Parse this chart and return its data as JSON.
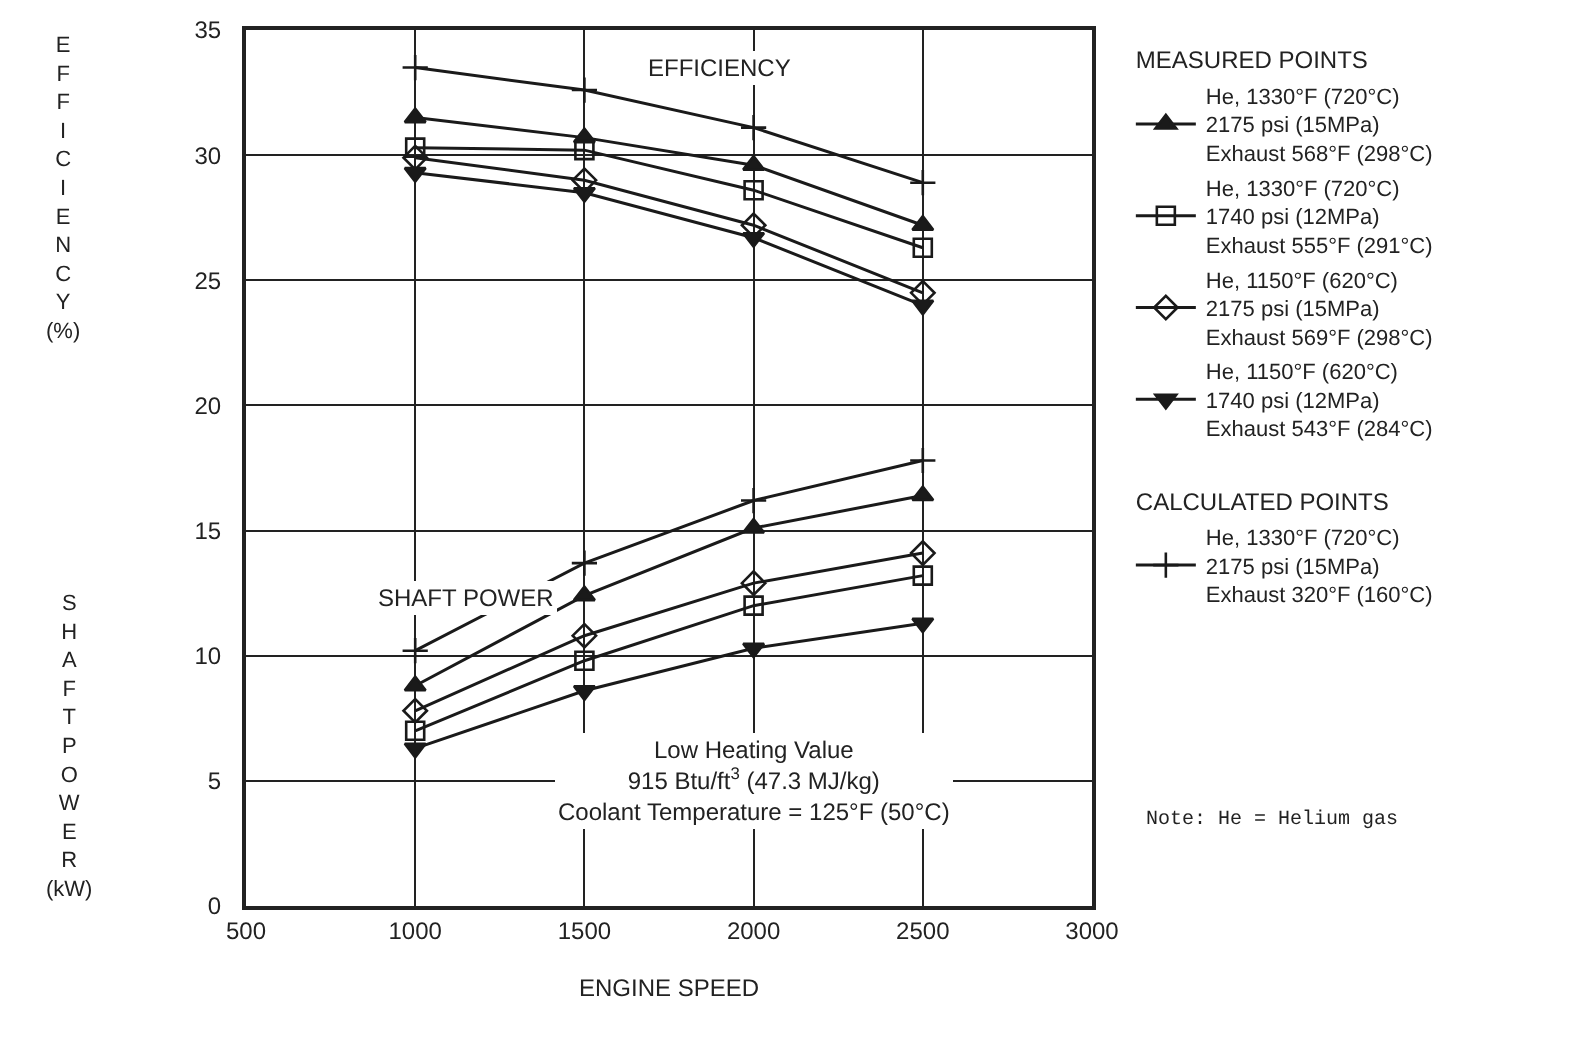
{
  "chart_data": {
    "type": "line",
    "xlabel": "ENGINE SPEED",
    "ylabel": "EFFICIENCY (%)",
    "legend_title": "MEASURED POINTS",
    "x": [
      1000,
      1500,
      2000,
      2500
    ],
    "xlim": [
      500,
      3000
    ],
    "xticks": [
      500,
      1000,
      1500,
      2000,
      2500,
      3000
    ],
    "ylim": [
      0,
      35
    ],
    "yticks": [
      0,
      5,
      10,
      15,
      20,
      25,
      30,
      35
    ],
    "grid": true,
    "legend": "right",
    "line_style": "solid",
    "series": [
      {
        "name": "He, 1330°F (720°C)\n2175 psi (15MPa)\nExhaust 568°F (298°C)",
        "color": "#1a1a1a",
        "marker": "triangle-up",
        "values": [
          31.5,
          30.7,
          29.6,
          27.2
        ]
      },
      {
        "name": "He, 1330°F (720°C)\n1740 psi (12MPa)\nExhaust 555°F (291°C)",
        "color": "#1a1a1a",
        "marker": "square",
        "values": [
          30.3,
          30.2,
          28.6,
          26.3
        ]
      },
      {
        "name": "He, 1150°F (620°C)\n2175 psi (15MPa)\nExhaust 569°F (298°C)",
        "color": "#1a1a1a",
        "marker": "diamond",
        "values": [
          29.9,
          29.0,
          27.2,
          24.5
        ]
      },
      {
        "name": "He, 1150°F (620°C)\n1740 psi (12MPa)\nExhaust 543°F (284°C)",
        "color": "#1a1a1a",
        "marker": "triangle-down",
        "values": [
          29.3,
          28.5,
          26.7,
          24.0
        ]
      },
      {
        "name": "He, 1330°F (720°C)\n2175 psi (15MPa)\nExhaust 320°F (160°C)",
        "color": "#1a1a1a",
        "marker": "cross",
        "values": [
          33.5,
          32.6,
          31.1,
          28.9
        ]
      },
      {
        "color": "#1a1a1a",
        "marker": "triangle-up",
        "values": [
          8.8,
          12.4,
          15.1,
          16.4
        ]
      },
      {
        "color": "#1a1a1a",
        "marker": "square",
        "values": [
          7.0,
          9.8,
          12.0,
          13.2
        ]
      },
      {
        "color": "#1a1a1a",
        "marker": "diamond",
        "values": [
          7.8,
          10.8,
          12.9,
          14.1
        ]
      },
      {
        "color": "#1a1a1a",
        "marker": "triangle-down",
        "values": [
          6.3,
          8.6,
          10.3,
          11.3
        ]
      },
      {
        "color": "#1a1a1a",
        "marker": "cross",
        "values": [
          10.2,
          13.7,
          16.2,
          17.8
        ]
      }
    ],
    "annotations": [
      "EFFICIENCY",
      "SHAFT POWER",
      "Low Heating Value\n915 Btu/ft$^{3}$ (47.3 MJ/kg)\nCoolant Temperature = 125°F (50°C)",
      "SHAFT POWER (kW)",
      "CALCULATED POINTS",
      "Note: He = Helium gas"
    ]
  }
}
